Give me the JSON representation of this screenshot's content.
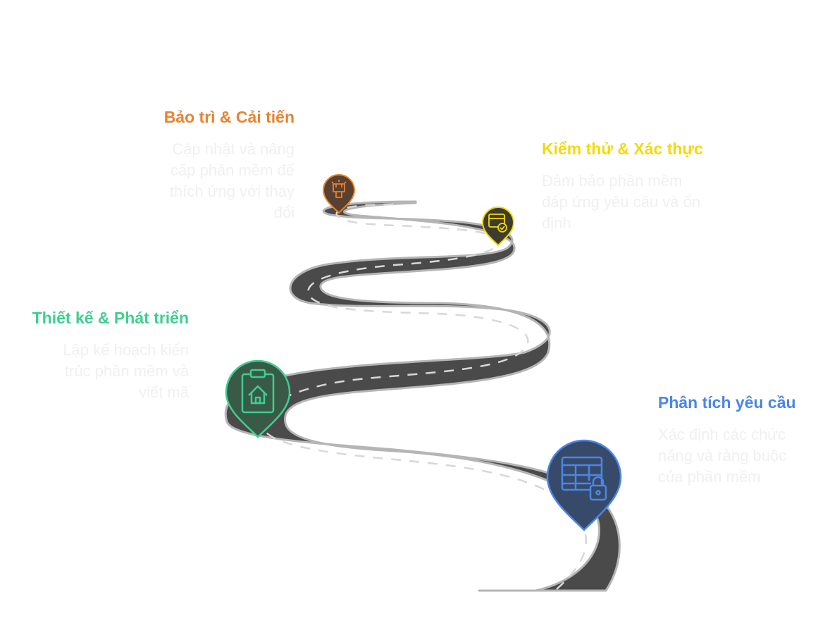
{
  "stages": [
    {
      "title": "Phân tích yêu cầu",
      "description": "Xác định các chức năng và ràng buộc của phần mềm",
      "color": "#4a86e8",
      "icon": "table-lock-icon"
    },
    {
      "title": "Thiết kế & Phát triển",
      "description": "Lập kế hoạch kiến trúc phần mềm và viết mã",
      "color": "#3ecf8e",
      "icon": "clipboard-home-icon"
    },
    {
      "title": "Kiểm thử & Xác thực",
      "description": "Đảm bảo phần mềm đáp ứng yêu cầu và ổn định",
      "color": "#f5d90a",
      "icon": "browser-check-icon"
    },
    {
      "title": "Bảo trì & Cải tiến",
      "description": "Cập nhật và nâng cấp phần mềm để thích ứng với thay đổi",
      "color": "#e8832f",
      "icon": "lamp-icon"
    }
  ],
  "colors": {
    "road": "#4a4a4a",
    "road_edge": "#b5b5b5",
    "lane_marking": "#d8d8d8"
  }
}
